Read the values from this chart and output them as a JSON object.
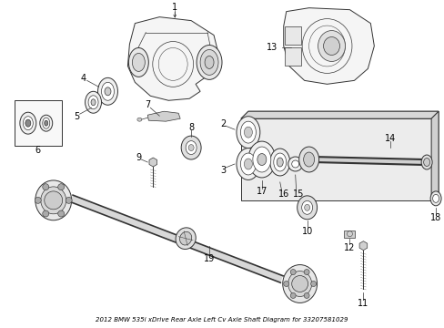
{
  "title": "2012 BMW 535i xDrive Rear Axle Left Cv Axle Shaft Diagram for 33207581029",
  "background_color": "#ffffff",
  "fig_width": 4.89,
  "fig_height": 3.6,
  "dpi": 100,
  "line_color": "#333333",
  "text_color": "#000000",
  "font_size": 7.0
}
